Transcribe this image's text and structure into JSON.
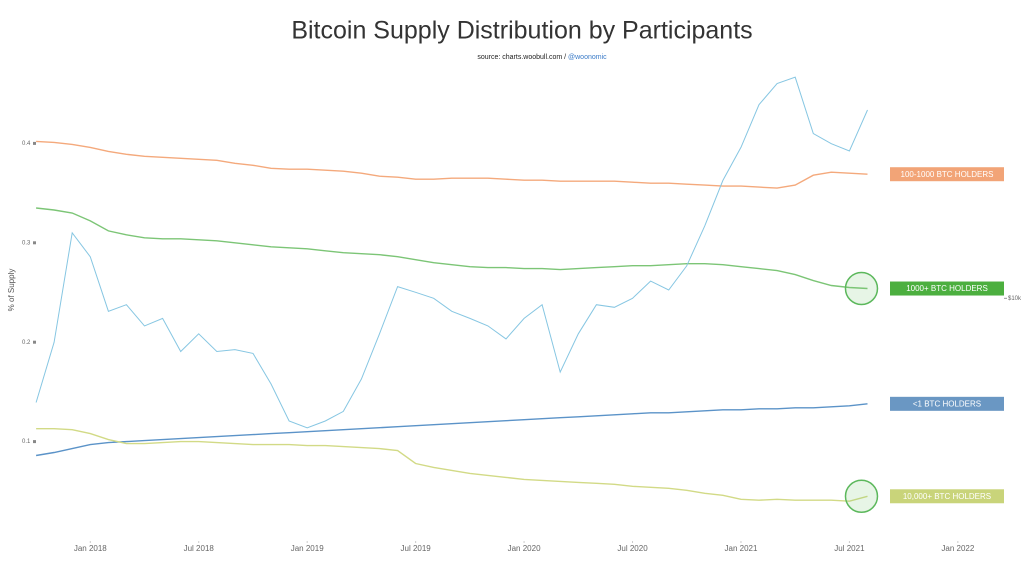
{
  "chart_data": {
    "type": "line",
    "title": "Bitcoin Supply Distribution by Participants",
    "subtitle": {
      "source": "source: charts.woobull.com /",
      "handle": "@woonomic"
    },
    "ylabel": "% of Supply",
    "x": [
      "2017-10",
      "2017-11",
      "2017-12",
      "2018-01",
      "2018-02",
      "2018-03",
      "2018-04",
      "2018-05",
      "2018-06",
      "2018-07",
      "2018-08",
      "2018-09",
      "2018-10",
      "2018-11",
      "2018-12",
      "2019-01",
      "2019-02",
      "2019-03",
      "2019-04",
      "2019-05",
      "2019-06",
      "2019-07",
      "2019-08",
      "2019-09",
      "2019-10",
      "2019-11",
      "2019-12",
      "2020-01",
      "2020-02",
      "2020-03",
      "2020-04",
      "2020-05",
      "2020-06",
      "2020-07",
      "2020-08",
      "2020-09",
      "2020-10",
      "2020-11",
      "2020-12",
      "2021-01",
      "2021-02",
      "2021-03",
      "2021-04",
      "2021-05",
      "2021-06",
      "2021-07",
      "2021-08"
    ],
    "xlim": [
      "2017-09",
      "2022-03"
    ],
    "xticks": [
      {
        "value": "2018-01",
        "label": "Jan 2018"
      },
      {
        "value": "2018-07",
        "label": "Jul 2018"
      },
      {
        "value": "2019-01",
        "label": "Jan 2019"
      },
      {
        "value": "2019-07",
        "label": "Jul 2019"
      },
      {
        "value": "2020-01",
        "label": "Jan 2020"
      },
      {
        "value": "2020-07",
        "label": "Jul 2020"
      },
      {
        "value": "2021-01",
        "label": "Jan 2021"
      },
      {
        "value": "2021-07",
        "label": "Jul 2021"
      },
      {
        "value": "2022-01",
        "label": "Jan 2022"
      }
    ],
    "ylim": [
      0,
      0.5
    ],
    "yticks": [
      0.1,
      0.2,
      0.3,
      0.4
    ],
    "y2lim": [
      1400,
      78500
    ],
    "y2ticks": [
      {
        "value": 10000,
        "label": "$10k"
      }
    ],
    "y2log": true,
    "series": [
      {
        "name": "100-1000 BTC HOLDERS",
        "color": "#f4a97c",
        "label_color": "#f2a477",
        "values": [
          0.402,
          0.401,
          0.399,
          0.396,
          0.392,
          0.389,
          0.387,
          0.386,
          0.385,
          0.384,
          0.383,
          0.38,
          0.378,
          0.375,
          0.374,
          0.374,
          0.373,
          0.372,
          0.37,
          0.367,
          0.366,
          0.364,
          0.364,
          0.365,
          0.365,
          0.365,
          0.364,
          0.363,
          0.363,
          0.362,
          0.362,
          0.362,
          0.362,
          0.361,
          0.36,
          0.36,
          0.359,
          0.358,
          0.357,
          0.357,
          0.356,
          0.355,
          0.358,
          0.368,
          0.371,
          0.37,
          0.369
        ]
      },
      {
        "name": "1000+ BTC HOLDERS",
        "color": "#7cc576",
        "label_color": "#4caf3f",
        "highlight": true,
        "values": [
          0.335,
          0.333,
          0.33,
          0.322,
          0.312,
          0.308,
          0.305,
          0.304,
          0.304,
          0.303,
          0.302,
          0.3,
          0.298,
          0.296,
          0.295,
          0.294,
          0.292,
          0.29,
          0.289,
          0.288,
          0.286,
          0.283,
          0.28,
          0.278,
          0.276,
          0.275,
          0.275,
          0.274,
          0.274,
          0.273,
          0.274,
          0.275,
          0.276,
          0.277,
          0.277,
          0.278,
          0.279,
          0.279,
          0.278,
          0.276,
          0.274,
          0.272,
          0.268,
          0.262,
          0.257,
          0.255,
          0.254
        ]
      },
      {
        "name": "<1 BTC HOLDERS",
        "color": "#5b93c8",
        "label_color": "#6a97c3",
        "values": [
          0.086,
          0.089,
          0.093,
          0.097,
          0.099,
          0.1,
          0.101,
          0.102,
          0.103,
          0.104,
          0.105,
          0.106,
          0.107,
          0.108,
          0.109,
          0.11,
          0.111,
          0.112,
          0.113,
          0.114,
          0.115,
          0.116,
          0.117,
          0.118,
          0.119,
          0.12,
          0.121,
          0.122,
          0.123,
          0.124,
          0.125,
          0.126,
          0.127,
          0.128,
          0.129,
          0.129,
          0.13,
          0.131,
          0.132,
          0.132,
          0.133,
          0.133,
          0.134,
          0.134,
          0.135,
          0.136,
          0.138
        ]
      },
      {
        "name": "10,000+ BTC HOLDERS",
        "color": "#d2da86",
        "label_color": "#c9d47a",
        "highlight": true,
        "values": [
          0.113,
          0.113,
          0.112,
          0.108,
          0.102,
          0.098,
          0.098,
          0.099,
          0.1,
          0.1,
          0.099,
          0.098,
          0.097,
          0.097,
          0.097,
          0.096,
          0.096,
          0.095,
          0.094,
          0.093,
          0.091,
          0.078,
          0.074,
          0.071,
          0.068,
          0.066,
          0.064,
          0.062,
          0.061,
          0.06,
          0.059,
          0.058,
          0.057,
          0.055,
          0.054,
          0.053,
          0.051,
          0.048,
          0.046,
          0.042,
          0.041,
          0.042,
          0.041,
          0.041,
          0.041,
          0.04,
          0.045
        ]
      },
      {
        "color": "#86c6e2",
        "axis": "y2",
        "values": [
          4300,
          7000,
          17000,
          14000,
          9000,
          9500,
          8000,
          8500,
          6500,
          7500,
          6500,
          6600,
          6400,
          5000,
          3700,
          3500,
          3700,
          4000,
          5200,
          7500,
          11000,
          10500,
          10000,
          9000,
          8500,
          8000,
          7200,
          8500,
          9500,
          5500,
          7500,
          9500,
          9300,
          10000,
          11500,
          10700,
          13000,
          18000,
          26000,
          34000,
          48000,
          57000,
          60000,
          38000,
          35000,
          33000,
          46000
        ]
      }
    ]
  }
}
